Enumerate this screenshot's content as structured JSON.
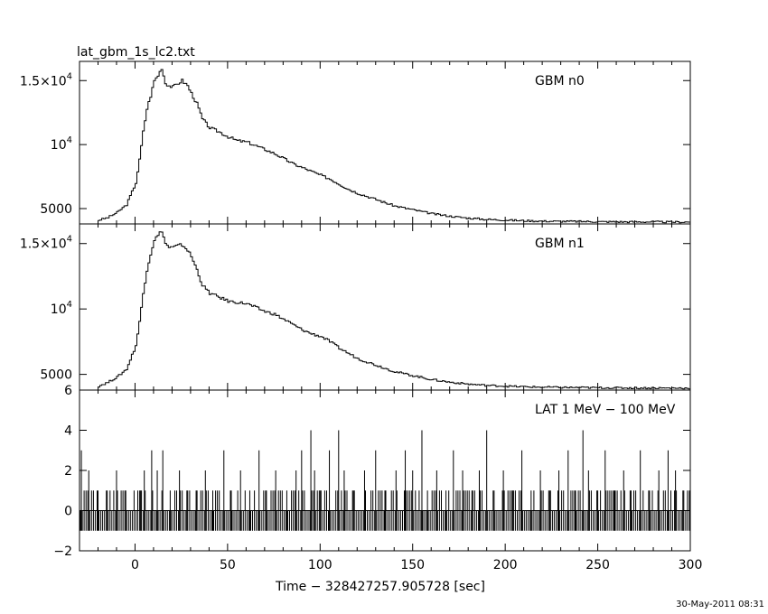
{
  "title": "lat_gbm_1s_lc2.txt",
  "timestamp": "30-May-2011 08:31",
  "chart_data": [
    {
      "type": "line",
      "label": "GBM n0",
      "xlim": [
        -30,
        300
      ],
      "ylim": [
        3800,
        16500
      ],
      "ytick_values": [
        5000,
        10000,
        15000
      ],
      "ytick_labels": [
        {
          "base": "5000"
        },
        {
          "base": "10",
          "sup": "4"
        },
        {
          "base": "1.5×10",
          "sup": "4"
        }
      ],
      "x": [
        -20,
        -15,
        -10,
        -5,
        0,
        2,
        4,
        6,
        8,
        10,
        12,
        14,
        16,
        18,
        20,
        22,
        25,
        28,
        30,
        33,
        36,
        40,
        45,
        50,
        55,
        60,
        65,
        70,
        75,
        80,
        85,
        90,
        95,
        100,
        105,
        110,
        115,
        120,
        130,
        140,
        150,
        160,
        170,
        180,
        190,
        200,
        210,
        220,
        230,
        240,
        250,
        260,
        270,
        280,
        290,
        300
      ],
      "y": [
        4100,
        4300,
        4700,
        5300,
        7000,
        8800,
        11000,
        12800,
        13800,
        15000,
        15400,
        16000,
        14800,
        14600,
        14500,
        14700,
        15000,
        14600,
        14000,
        13200,
        12000,
        11300,
        11000,
        10600,
        10300,
        10200,
        9900,
        9600,
        9300,
        8900,
        8500,
        8200,
        7900,
        7600,
        7300,
        6900,
        6500,
        6200,
        5700,
        5200,
        4900,
        4600,
        4400,
        4250,
        4150,
        4100,
        4050,
        4020,
        4000,
        3990,
        3980,
        3970,
        3960,
        3960,
        3950,
        3950
      ]
    },
    {
      "type": "line",
      "label": "GBM n1",
      "xlim": [
        -30,
        300
      ],
      "ylim": [
        3800,
        16500
      ],
      "ytick_values": [
        5000,
        10000,
        15000
      ],
      "ytick_labels": [
        {
          "base": "5000"
        },
        {
          "base": "10",
          "sup": "4"
        },
        {
          "base": "1.5×10",
          "sup": "4"
        }
      ],
      "x": [
        -20,
        -15,
        -10,
        -5,
        0,
        2,
        4,
        6,
        8,
        10,
        12,
        14,
        16,
        18,
        20,
        22,
        25,
        28,
        30,
        33,
        36,
        40,
        45,
        50,
        55,
        60,
        65,
        70,
        75,
        80,
        85,
        90,
        95,
        100,
        105,
        110,
        115,
        120,
        130,
        140,
        150,
        160,
        170,
        180,
        190,
        200,
        210,
        220,
        230,
        240,
        250,
        260,
        270,
        280,
        290,
        300
      ],
      "y": [
        4100,
        4400,
        4800,
        5400,
        7200,
        9000,
        11200,
        13000,
        14200,
        15300,
        15600,
        16000,
        15000,
        14700,
        14700,
        14800,
        14900,
        14500,
        14000,
        13000,
        11800,
        11200,
        10900,
        10600,
        10500,
        10400,
        10100,
        9800,
        9600,
        9200,
        8800,
        8400,
        8100,
        7900,
        7500,
        7000,
        6600,
        6200,
        5700,
        5200,
        4900,
        4600,
        4400,
        4250,
        4150,
        4100,
        4050,
        4020,
        4000,
        3990,
        3980,
        3970,
        3960,
        3960,
        3950,
        3950
      ]
    },
    {
      "type": "line",
      "label": "LAT 1 MeV − 100 MeV",
      "xlim": [
        -30,
        300
      ],
      "ylim": [
        -2,
        6
      ],
      "ytick_values": [
        -2,
        0,
        2,
        4,
        6
      ],
      "ytick_labels": [
        {
          "base": "−2"
        },
        {
          "base": "0"
        },
        {
          "base": "2"
        },
        {
          "base": "4"
        },
        {
          "base": "6"
        }
      ],
      "xtick_values": [
        0,
        50,
        100,
        150,
        200,
        250,
        300
      ],
      "xtick_labels": [
        "0",
        "50",
        "100",
        "150",
        "200",
        "250",
        "300"
      ],
      "xlabel": "Time − 328427257.905728 [sec]",
      "spikes": [
        {
          "x": -29,
          "y": 3
        },
        {
          "x": -25,
          "y": 2
        },
        {
          "x": -20,
          "y": 1
        },
        {
          "x": -15,
          "y": 1
        },
        {
          "x": -10,
          "y": 2
        },
        {
          "x": -5,
          "y": 1
        },
        {
          "x": 3,
          "y": 1
        },
        {
          "x": 5,
          "y": 2
        },
        {
          "x": 9,
          "y": 3
        },
        {
          "x": 12,
          "y": 2
        },
        {
          "x": 15,
          "y": 3
        },
        {
          "x": 19,
          "y": 1
        },
        {
          "x": 24,
          "y": 2
        },
        {
          "x": 28,
          "y": 1
        },
        {
          "x": 33,
          "y": 1
        },
        {
          "x": 38,
          "y": 2
        },
        {
          "x": 42,
          "y": 1
        },
        {
          "x": 48,
          "y": 3
        },
        {
          "x": 52,
          "y": 1
        },
        {
          "x": 57,
          "y": 2
        },
        {
          "x": 62,
          "y": 1
        },
        {
          "x": 67,
          "y": 3
        },
        {
          "x": 71,
          "y": 1
        },
        {
          "x": 76,
          "y": 2
        },
        {
          "x": 82,
          "y": 1
        },
        {
          "x": 87,
          "y": 2
        },
        {
          "x": 90,
          "y": 3
        },
        {
          "x": 95,
          "y": 4
        },
        {
          "x": 97,
          "y": 2
        },
        {
          "x": 100,
          "y": 1
        },
        {
          "x": 105,
          "y": 3
        },
        {
          "x": 110,
          "y": 4
        },
        {
          "x": 113,
          "y": 2
        },
        {
          "x": 118,
          "y": 1
        },
        {
          "x": 124,
          "y": 2
        },
        {
          "x": 130,
          "y": 3
        },
        {
          "x": 135,
          "y": 1
        },
        {
          "x": 141,
          "y": 2
        },
        {
          "x": 146,
          "y": 3
        },
        {
          "x": 150,
          "y": 2
        },
        {
          "x": 155,
          "y": 4
        },
        {
          "x": 158,
          "y": 1
        },
        {
          "x": 163,
          "y": 2
        },
        {
          "x": 168,
          "y": 1
        },
        {
          "x": 172,
          "y": 3
        },
        {
          "x": 177,
          "y": 2
        },
        {
          "x": 182,
          "y": 1
        },
        {
          "x": 186,
          "y": 2
        },
        {
          "x": 190,
          "y": 4
        },
        {
          "x": 194,
          "y": 1
        },
        {
          "x": 199,
          "y": 2
        },
        {
          "x": 204,
          "y": 1
        },
        {
          "x": 209,
          "y": 3
        },
        {
          "x": 214,
          "y": 1
        },
        {
          "x": 219,
          "y": 2
        },
        {
          "x": 224,
          "y": 1
        },
        {
          "x": 229,
          "y": 2
        },
        {
          "x": 234,
          "y": 3
        },
        {
          "x": 238,
          "y": 1
        },
        {
          "x": 242,
          "y": 4
        },
        {
          "x": 245,
          "y": 2
        },
        {
          "x": 250,
          "y": 1
        },
        {
          "x": 254,
          "y": 3
        },
        {
          "x": 259,
          "y": 1
        },
        {
          "x": 264,
          "y": 2
        },
        {
          "x": 268,
          "y": 1
        },
        {
          "x": 273,
          "y": 3
        },
        {
          "x": 278,
          "y": 1
        },
        {
          "x": 283,
          "y": 2
        },
        {
          "x": 288,
          "y": 3
        },
        {
          "x": 292,
          "y": 2
        },
        {
          "x": 296,
          "y": 1
        }
      ]
    }
  ]
}
